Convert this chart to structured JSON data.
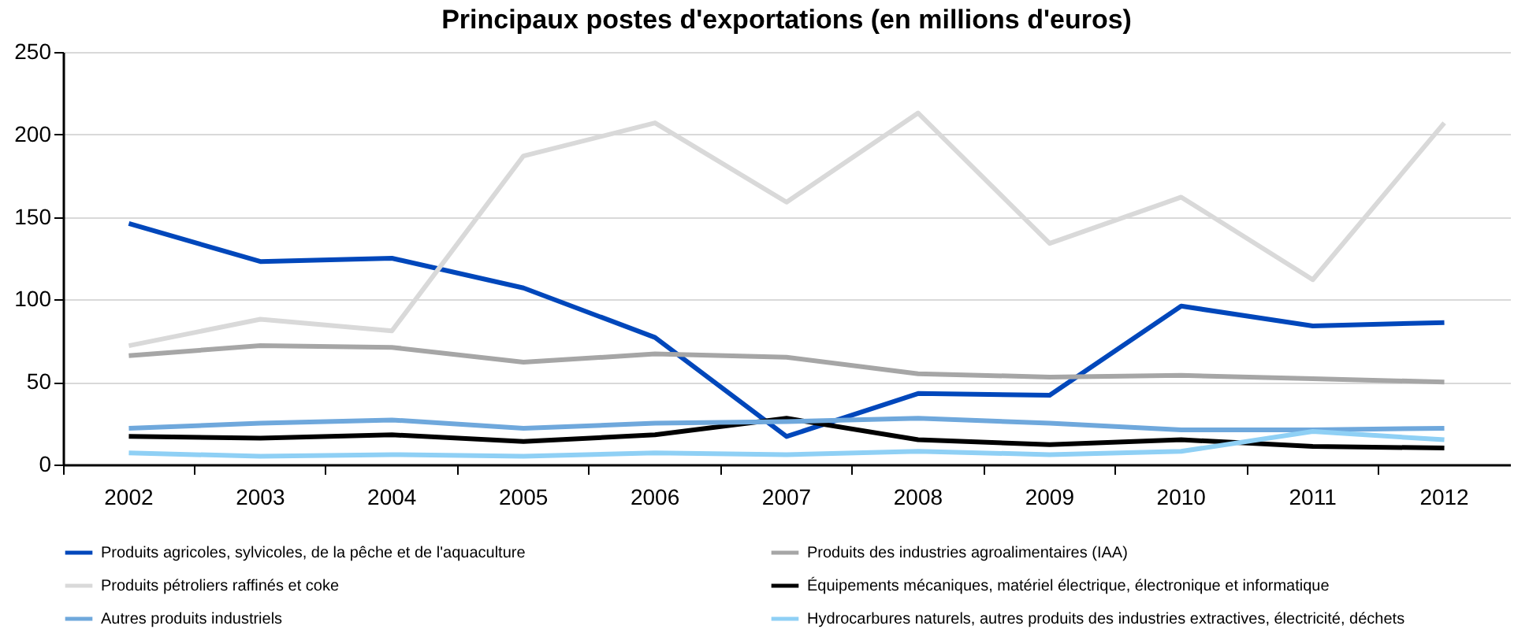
{
  "chart_data": {
    "type": "line",
    "title": "Principaux postes d'exportations (en millions d'euros)",
    "categories": [
      "2002",
      "2003",
      "2004",
      "2005",
      "2006",
      "2007",
      "2008",
      "2009",
      "2010",
      "2011",
      "2012"
    ],
    "series": [
      {
        "name": "Produits agricoles, sylvicoles, de la pêche et de l'aquaculture",
        "color": "#0047bb",
        "values": [
          146,
          123,
          125,
          107,
          77,
          17,
          43,
          42,
          96,
          84,
          86
        ]
      },
      {
        "name": "Produits des industries agroalimentaires (IAA)",
        "color": "#a6a6a6",
        "values": [
          66,
          72,
          71,
          62,
          67,
          65,
          55,
          53,
          54,
          52,
          50
        ]
      },
      {
        "name": "Produits pétroliers raffinés et coke",
        "color": "#d9d9d9",
        "values": [
          72,
          88,
          81,
          187,
          207,
          159,
          213,
          134,
          162,
          112,
          207
        ]
      },
      {
        "name": "Équipements mécaniques, matériel électrique, électronique et informatique",
        "color": "#000000",
        "values": [
          17,
          16,
          18,
          14,
          18,
          28,
          15,
          12,
          15,
          11,
          10
        ]
      },
      {
        "name": "Autres produits industriels",
        "color": "#6fa8dc",
        "values": [
          22,
          25,
          27,
          22,
          25,
          26,
          28,
          25,
          21,
          21,
          22
        ]
      },
      {
        "name": "Hydrocarbures naturels, autres produits des industries extractives, électricité, déchets",
        "color": "#8fd0f5",
        "values": [
          7,
          5,
          6,
          5,
          7,
          6,
          8,
          6,
          8,
          20,
          15
        ]
      }
    ],
    "ylim": [
      0,
      250
    ],
    "yticks": [
      0,
      50,
      100,
      150,
      200,
      250
    ],
    "grid": "y",
    "legend": "bottom",
    "marker": "none",
    "line_style": "solid"
  }
}
